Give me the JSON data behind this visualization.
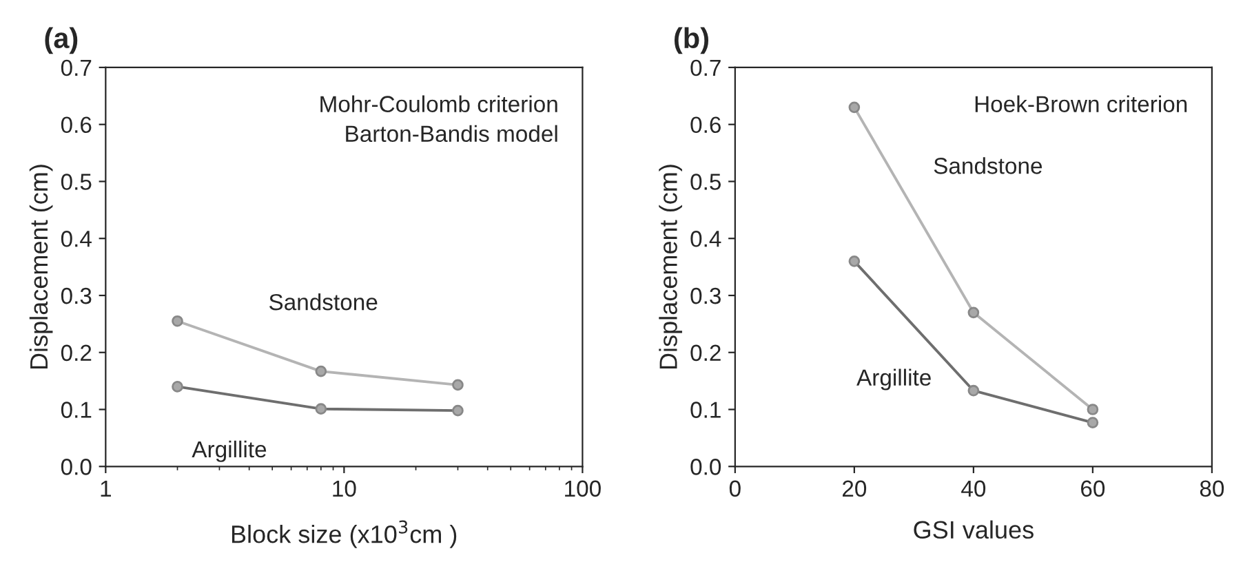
{
  "chart_data": [
    {
      "type": "line",
      "title": "(a)",
      "xlabel": "Block size (x10$^{3}$cm )",
      "ylabel": "Displacement (cm)",
      "annotations": [
        "Mohr-Coulomb criterion\nBarton-Bandis model"
      ],
      "log": "x",
      "xlim": [
        1,
        100
      ],
      "xticks": [
        1,
        10,
        100
      ],
      "ylim": [
        0,
        0.7
      ],
      "yticks": [
        {
          "value": 0,
          "label": "0.0"
        },
        0.1,
        0.2,
        0.3,
        0.4,
        0.5,
        0.6,
        0.7
      ],
      "grid": false,
      "legend": false,
      "marker": "circle",
      "line_style": "solid",
      "x": [
        2,
        8,
        30
      ],
      "series": [
        {
          "name": "Sandstone",
          "color": "#b4b4b4",
          "values": [
            0.255,
            0.167,
            0.143
          ]
        },
        {
          "name": "Argillite",
          "color": "#6e6e6e",
          "values": [
            0.14,
            0.101,
            0.098
          ]
        }
      ]
    },
    {
      "type": "line",
      "title": "(b)",
      "xlabel": "GSI values",
      "ylabel": "Displacement (cm)",
      "annotations": [
        "Hoek-Brown criterion"
      ],
      "xlim": [
        0,
        80
      ],
      "xticks": [
        0,
        20,
        40,
        60,
        80
      ],
      "ylim": [
        0,
        0.7
      ],
      "yticks": [
        {
          "value": 0,
          "label": "0.0"
        },
        0.1,
        0.2,
        0.3,
        0.4,
        0.5,
        0.6,
        0.7
      ],
      "grid": false,
      "legend": false,
      "marker": "circle",
      "line_style": "solid",
      "x": [
        20,
        40,
        60
      ],
      "series": [
        {
          "name": "Sandstone",
          "color": "#b4b4b4",
          "values": [
            0.63,
            0.27,
            0.1
          ]
        },
        {
          "name": "Argillite",
          "color": "#6e6e6e",
          "values": [
            0.36,
            0.133,
            0.077
          ]
        }
      ]
    }
  ]
}
